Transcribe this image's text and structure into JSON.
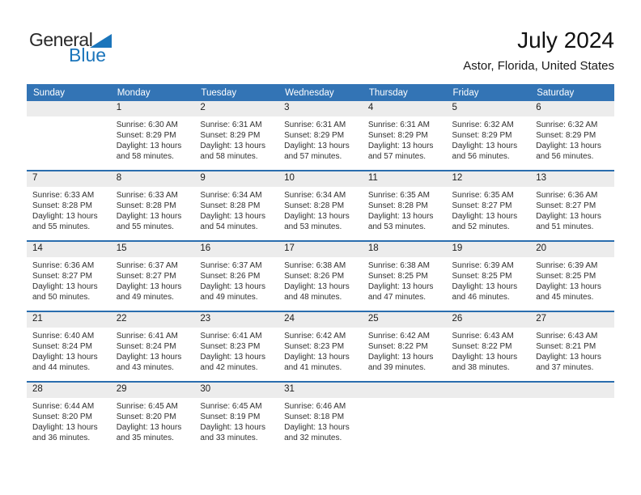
{
  "logo": {
    "general": "General",
    "blue": "Blue"
  },
  "header": {
    "title": "July 2024",
    "subtitle": "Astor, Florida, United States"
  },
  "colors": {
    "header_bar_blue": "#3374b5",
    "week_divider_blue": "#2a6dae",
    "date_strip_gray": "#ececec",
    "logo_blue": "#1b75bb"
  },
  "calendar": {
    "day_headers": [
      "Sunday",
      "Monday",
      "Tuesday",
      "Wednesday",
      "Thursday",
      "Friday",
      "Saturday"
    ],
    "weeks": [
      {
        "days": [
          null,
          {
            "date": "1",
            "sunrise": "Sunrise: 6:30 AM",
            "sunset": "Sunset: 8:29 PM",
            "daylight": "Daylight: 13 hours and 58 minutes."
          },
          {
            "date": "2",
            "sunrise": "Sunrise: 6:31 AM",
            "sunset": "Sunset: 8:29 PM",
            "daylight": "Daylight: 13 hours and 58 minutes."
          },
          {
            "date": "3",
            "sunrise": "Sunrise: 6:31 AM",
            "sunset": "Sunset: 8:29 PM",
            "daylight": "Daylight: 13 hours and 57 minutes."
          },
          {
            "date": "4",
            "sunrise": "Sunrise: 6:31 AM",
            "sunset": "Sunset: 8:29 PM",
            "daylight": "Daylight: 13 hours and 57 minutes."
          },
          {
            "date": "5",
            "sunrise": "Sunrise: 6:32 AM",
            "sunset": "Sunset: 8:29 PM",
            "daylight": "Daylight: 13 hours and 56 minutes."
          },
          {
            "date": "6",
            "sunrise": "Sunrise: 6:32 AM",
            "sunset": "Sunset: 8:29 PM",
            "daylight": "Daylight: 13 hours and 56 minutes."
          }
        ]
      },
      {
        "days": [
          {
            "date": "7",
            "sunrise": "Sunrise: 6:33 AM",
            "sunset": "Sunset: 8:28 PM",
            "daylight": "Daylight: 13 hours and 55 minutes."
          },
          {
            "date": "8",
            "sunrise": "Sunrise: 6:33 AM",
            "sunset": "Sunset: 8:28 PM",
            "daylight": "Daylight: 13 hours and 55 minutes."
          },
          {
            "date": "9",
            "sunrise": "Sunrise: 6:34 AM",
            "sunset": "Sunset: 8:28 PM",
            "daylight": "Daylight: 13 hours and 54 minutes."
          },
          {
            "date": "10",
            "sunrise": "Sunrise: 6:34 AM",
            "sunset": "Sunset: 8:28 PM",
            "daylight": "Daylight: 13 hours and 53 minutes."
          },
          {
            "date": "11",
            "sunrise": "Sunrise: 6:35 AM",
            "sunset": "Sunset: 8:28 PM",
            "daylight": "Daylight: 13 hours and 53 minutes."
          },
          {
            "date": "12",
            "sunrise": "Sunrise: 6:35 AM",
            "sunset": "Sunset: 8:27 PM",
            "daylight": "Daylight: 13 hours and 52 minutes."
          },
          {
            "date": "13",
            "sunrise": "Sunrise: 6:36 AM",
            "sunset": "Sunset: 8:27 PM",
            "daylight": "Daylight: 13 hours and 51 minutes."
          }
        ]
      },
      {
        "days": [
          {
            "date": "14",
            "sunrise": "Sunrise: 6:36 AM",
            "sunset": "Sunset: 8:27 PM",
            "daylight": "Daylight: 13 hours and 50 minutes."
          },
          {
            "date": "15",
            "sunrise": "Sunrise: 6:37 AM",
            "sunset": "Sunset: 8:27 PM",
            "daylight": "Daylight: 13 hours and 49 minutes."
          },
          {
            "date": "16",
            "sunrise": "Sunrise: 6:37 AM",
            "sunset": "Sunset: 8:26 PM",
            "daylight": "Daylight: 13 hours and 49 minutes."
          },
          {
            "date": "17",
            "sunrise": "Sunrise: 6:38 AM",
            "sunset": "Sunset: 8:26 PM",
            "daylight": "Daylight: 13 hours and 48 minutes."
          },
          {
            "date": "18",
            "sunrise": "Sunrise: 6:38 AM",
            "sunset": "Sunset: 8:25 PM",
            "daylight": "Daylight: 13 hours and 47 minutes."
          },
          {
            "date": "19",
            "sunrise": "Sunrise: 6:39 AM",
            "sunset": "Sunset: 8:25 PM",
            "daylight": "Daylight: 13 hours and 46 minutes."
          },
          {
            "date": "20",
            "sunrise": "Sunrise: 6:39 AM",
            "sunset": "Sunset: 8:25 PM",
            "daylight": "Daylight: 13 hours and 45 minutes."
          }
        ]
      },
      {
        "days": [
          {
            "date": "21",
            "sunrise": "Sunrise: 6:40 AM",
            "sunset": "Sunset: 8:24 PM",
            "daylight": "Daylight: 13 hours and 44 minutes."
          },
          {
            "date": "22",
            "sunrise": "Sunrise: 6:41 AM",
            "sunset": "Sunset: 8:24 PM",
            "daylight": "Daylight: 13 hours and 43 minutes."
          },
          {
            "date": "23",
            "sunrise": "Sunrise: 6:41 AM",
            "sunset": "Sunset: 8:23 PM",
            "daylight": "Daylight: 13 hours and 42 minutes."
          },
          {
            "date": "24",
            "sunrise": "Sunrise: 6:42 AM",
            "sunset": "Sunset: 8:23 PM",
            "daylight": "Daylight: 13 hours and 41 minutes."
          },
          {
            "date": "25",
            "sunrise": "Sunrise: 6:42 AM",
            "sunset": "Sunset: 8:22 PM",
            "daylight": "Daylight: 13 hours and 39 minutes."
          },
          {
            "date": "26",
            "sunrise": "Sunrise: 6:43 AM",
            "sunset": "Sunset: 8:22 PM",
            "daylight": "Daylight: 13 hours and 38 minutes."
          },
          {
            "date": "27",
            "sunrise": "Sunrise: 6:43 AM",
            "sunset": "Sunset: 8:21 PM",
            "daylight": "Daylight: 13 hours and 37 minutes."
          }
        ]
      },
      {
        "days": [
          {
            "date": "28",
            "sunrise": "Sunrise: 6:44 AM",
            "sunset": "Sunset: 8:20 PM",
            "daylight": "Daylight: 13 hours and 36 minutes."
          },
          {
            "date": "29",
            "sunrise": "Sunrise: 6:45 AM",
            "sunset": "Sunset: 8:20 PM",
            "daylight": "Daylight: 13 hours and 35 minutes."
          },
          {
            "date": "30",
            "sunrise": "Sunrise: 6:45 AM",
            "sunset": "Sunset: 8:19 PM",
            "daylight": "Daylight: 13 hours and 33 minutes."
          },
          {
            "date": "31",
            "sunrise": "Sunrise: 6:46 AM",
            "sunset": "Sunset: 8:18 PM",
            "daylight": "Daylight: 13 hours and 32 minutes."
          },
          null,
          null,
          null
        ]
      }
    ]
  }
}
